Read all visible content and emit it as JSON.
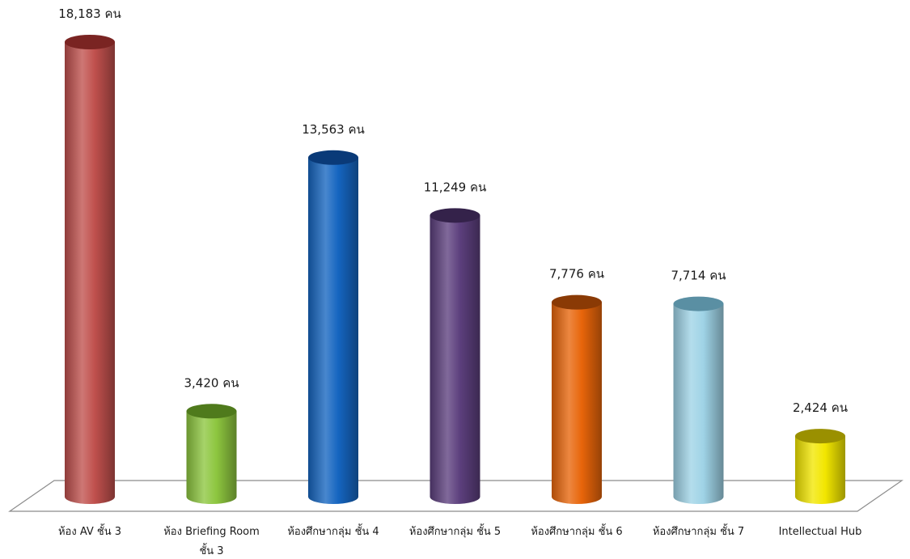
{
  "chart_data": {
    "type": "bar",
    "title": "",
    "xlabel": "",
    "ylabel": "",
    "ylim": [
      0,
      18183
    ],
    "grid": false,
    "legend": "none",
    "categories": [
      "ห้อง AV ชั้น 3",
      "ห้อง Briefing Room ชั้น 3",
      "ห้องศึกษากลุ่ม ชั้น 4",
      "ห้องศึกษากลุ่ม ชั้น 5",
      "ห้องศึกษากลุ่ม ชั้น 6",
      "ห้องศึกษากลุ่ม ชั้น 7",
      "Intellectual Hub"
    ],
    "category_lines": [
      [
        "ห้อง AV ชั้น 3"
      ],
      [
        "ห้อง Briefing Room",
        "ชั้น 3"
      ],
      [
        "ห้องศึกษากลุ่ม ชั้น 4"
      ],
      [
        "ห้องศึกษากลุ่ม ชั้น 5"
      ],
      [
        "ห้องศึกษากลุ่ม ชั้น 6"
      ],
      [
        "ห้องศึกษากลุ่ม ชั้น 7"
      ],
      [
        "Intellectual Hub"
      ]
    ],
    "values": [
      18183,
      3420,
      13563,
      11249,
      7776,
      7714,
      2424
    ],
    "data_labels": [
      "18,183 คน",
      "3,420 คน",
      "13,563 คน",
      "11,249 คน",
      "7,776 คน",
      "7,714 คน",
      "2,424 คน"
    ],
    "colors": [
      "#c0504d",
      "#8dc63f",
      "#1565c0",
      "#5c3f7d",
      "#e8650a",
      "#9fd3e6",
      "#f2e600"
    ],
    "edge_colors": [
      "#7a2422",
      "#4f7a1c",
      "#0a3a78",
      "#34224a",
      "#8a3a05",
      "#5a8fa3",
      "#9a9000"
    ]
  }
}
